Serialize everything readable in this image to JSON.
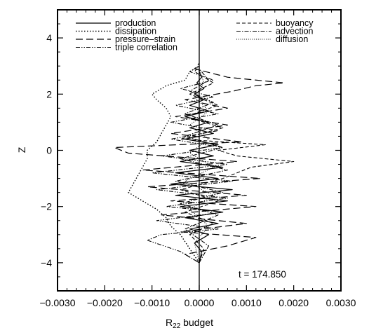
{
  "chart_data": {
    "type": "line",
    "title": "",
    "xlabel": "R",
    "xlabel_subscript": "22",
    "xlabel_suffix": " budget",
    "ylabel": "Z",
    "xlim": [
      -0.003,
      0.003
    ],
    "ylim": [
      -5,
      5
    ],
    "x_ticks": [
      -0.003,
      -0.002,
      -0.001,
      0.0,
      0.001,
      0.002,
      0.003
    ],
    "x_tick_labels": [
      "−0.0030",
      "−0.0020",
      "−0.0010",
      "0.0000",
      "0.0010",
      "0.0020",
      "0.0030"
    ],
    "y_ticks": [
      -4,
      -2,
      0,
      2,
      4
    ],
    "y_tick_labels": [
      "−4",
      "−2",
      "0",
      "2",
      "4"
    ],
    "grid": false,
    "legend_position": "top",
    "annotation": "t = 174.850",
    "series": [
      {
        "name": "production",
        "style": "solid",
        "z": [
          -4.0,
          -3.6,
          -3.3,
          -3.0,
          -2.8,
          -2.6,
          -2.4,
          -2.2,
          -2.0,
          -1.8,
          -1.6,
          -1.4,
          -1.2,
          -1.0,
          -0.8,
          -0.6,
          -0.4,
          -0.2,
          0.0,
          0.2,
          0.4,
          0.6,
          0.8,
          1.0,
          1.2,
          1.4,
          1.6,
          1.8,
          2.0,
          2.2,
          2.4,
          2.6,
          2.8,
          3.0
        ],
        "x": [
          0.0,
          5e-05,
          -0.0001,
          0.0002,
          -0.0002,
          0.0004,
          -0.0003,
          0.0005,
          -0.0004,
          0.0006,
          -0.0005,
          0.0007,
          -0.0006,
          0.0004,
          -0.0005,
          0.0005,
          -0.0004,
          0.0003,
          -0.0002,
          0.0004,
          -0.0003,
          0.0003,
          -0.0002,
          0.0002,
          -0.0003,
          0.0002,
          -0.0002,
          0.0001,
          -0.0001,
          0.0001,
          -5e-05,
          5e-05,
          0.0,
          0.0
        ]
      },
      {
        "name": "dissipation",
        "style": "dotted",
        "z": [
          -4.0,
          -3.5,
          -3.0,
          -2.7,
          -2.4,
          -2.1,
          -1.8,
          -1.5,
          -1.2,
          -0.9,
          -0.6,
          -0.3,
          0.0,
          0.3,
          0.6,
          0.9,
          1.2,
          1.5,
          1.8,
          2.0,
          2.3,
          2.5,
          2.8,
          3.0
        ],
        "x": [
          0.0,
          -0.0002,
          -0.0004,
          -0.0006,
          -0.0007,
          -0.0009,
          -0.0012,
          -0.0015,
          -0.0014,
          -0.0013,
          -0.0012,
          -0.0011,
          -0.0011,
          -0.0009,
          -0.0008,
          -0.0007,
          -0.0006,
          -0.0007,
          -0.0009,
          -0.001,
          -0.0007,
          -0.0003,
          -0.0002,
          0.0
        ]
      },
      {
        "name": "pressure–strain",
        "style": "longdash",
        "z": [
          -4.0,
          -3.7,
          -3.4,
          -3.1,
          -2.9,
          -2.6,
          -2.3,
          -2.0,
          -1.8,
          -1.6,
          -1.3,
          -1.0,
          -0.7,
          -0.4,
          -0.1,
          0.1,
          0.3,
          0.6,
          0.9,
          1.2,
          1.5,
          1.8,
          2.1,
          2.3,
          2.4,
          2.6,
          2.9,
          3.1
        ],
        "x": [
          0.0,
          -0.0003,
          0.0006,
          0.0012,
          -0.0004,
          0.001,
          -0.0008,
          0.0012,
          -0.0006,
          0.001,
          -0.0011,
          0.0013,
          -0.0012,
          0.0008,
          -0.0015,
          -0.0018,
          0.0009,
          -0.0006,
          0.0006,
          -0.0005,
          0.0006,
          -0.0003,
          0.0007,
          0.0012,
          0.0018,
          0.0006,
          -0.0001,
          0.0
        ]
      },
      {
        "name": "triple correlation",
        "style": "dashdotdot",
        "z": [
          -4.0,
          -3.6,
          -3.2,
          -3.0,
          -2.8,
          -2.5,
          -2.2,
          -2.0,
          -1.7,
          -1.4,
          -1.1,
          -0.8,
          -0.5,
          -0.2,
          0.1,
          0.4,
          0.7,
          1.0,
          1.3,
          1.6,
          1.9,
          2.2,
          2.5,
          2.8,
          3.0
        ],
        "x": [
          0.0,
          -0.0004,
          -0.0011,
          -0.0008,
          0.0004,
          -0.0009,
          0.0005,
          -0.0007,
          0.0006,
          -0.0009,
          0.0007,
          -0.001,
          0.0006,
          -0.0008,
          0.0005,
          -0.0006,
          0.0004,
          -0.0006,
          0.0004,
          -0.0005,
          0.0003,
          -0.0004,
          0.0003,
          -0.0002,
          0.0
        ]
      },
      {
        "name": "buoyancy",
        "style": "shortdash",
        "z": [
          -4.0,
          -3.5,
          -3.0,
          -2.6,
          -2.2,
          -1.8,
          -1.4,
          -1.0,
          -0.6,
          -0.4,
          -0.2,
          0.0,
          0.2,
          0.4,
          0.8,
          1.2,
          1.6,
          2.0,
          2.4,
          2.8,
          3.0
        ],
        "x": [
          0.0,
          0.0001,
          -0.0002,
          0.0003,
          -0.0003,
          0.0004,
          -0.0004,
          0.0005,
          0.0011,
          0.002,
          0.0008,
          0.0004,
          0.0014,
          -0.0004,
          0.0005,
          -0.0003,
          0.0004,
          -0.0002,
          0.0003,
          -0.0001,
          0.0
        ]
      },
      {
        "name": "advection",
        "style": "dashdot",
        "z": [
          -4.0,
          -3.4,
          -2.8,
          -2.3,
          -1.9,
          -1.5,
          -1.1,
          -0.7,
          -0.3,
          0.1,
          0.5,
          0.9,
          1.3,
          1.7,
          2.1,
          2.5,
          2.9
        ],
        "x": [
          0.0,
          0.0002,
          -0.0003,
          0.0004,
          -0.0004,
          0.0005,
          -0.0005,
          0.0006,
          -0.0004,
          0.0005,
          -0.0003,
          0.0004,
          -0.0003,
          0.0003,
          -0.0002,
          0.0002,
          0.0
        ]
      },
      {
        "name": "diffusion",
        "style": "finedot",
        "z": [
          -4.0,
          -3.3,
          -2.7,
          -2.1,
          -1.6,
          -1.1,
          -0.6,
          -0.1,
          0.4,
          0.9,
          1.4,
          1.9,
          2.4,
          2.9
        ],
        "x": [
          0.0,
          -0.0001,
          0.0002,
          -0.0002,
          0.0003,
          -0.0003,
          0.0003,
          -0.0002,
          0.0002,
          -0.0002,
          0.0002,
          -0.0001,
          0.0001,
          0.0
        ]
      }
    ]
  }
}
